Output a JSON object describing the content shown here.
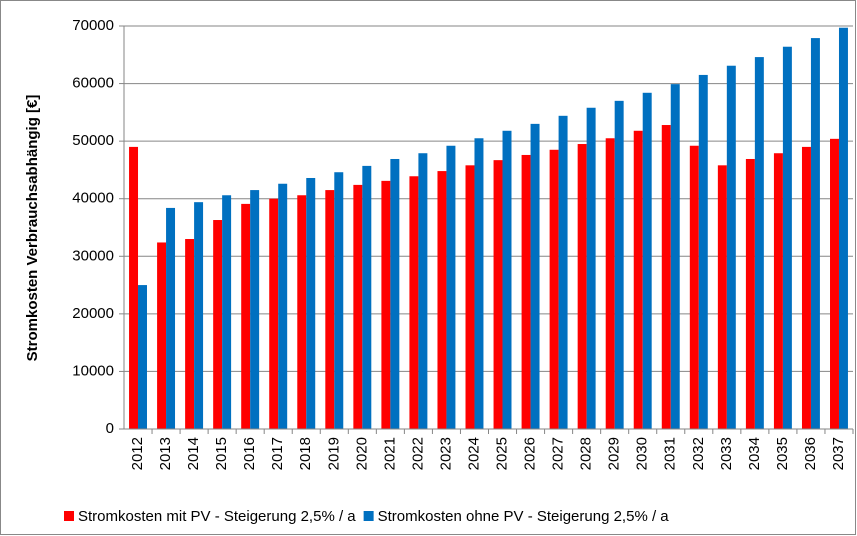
{
  "chart_data": {
    "type": "bar",
    "y_label": "Stromkosten Verbrauchsabhängig [€]",
    "categories": [
      "2012",
      "2013",
      "2014",
      "2015",
      "2016",
      "2017",
      "2018",
      "2019",
      "2020",
      "2021",
      "2022",
      "2023",
      "2024",
      "2025",
      "2026",
      "2027",
      "2028",
      "2029",
      "2030",
      "2031",
      "2032",
      "2033",
      "2034",
      "2035",
      "2036",
      "2037"
    ],
    "series": [
      {
        "name": "Stromkosten mit PV - Steigerung 2,5% / a",
        "color": "#ff0000",
        "values": [
          49000,
          32400,
          33000,
          36300,
          39100,
          40000,
          40600,
          41500,
          42400,
          43100,
          43900,
          44800,
          45800,
          46700,
          47600,
          48500,
          49500,
          50500,
          51800,
          52800,
          49200,
          45800,
          46900,
          47900,
          49000,
          50400
        ]
      },
      {
        "name": "Stromkosten ohne PV - Steigerung 2,5% / a",
        "color": "#0070c0",
        "values": [
          25000,
          38400,
          39400,
          40600,
          41500,
          42600,
          43600,
          44600,
          45700,
          46900,
          47900,
          49200,
          50500,
          51800,
          53000,
          54400,
          55800,
          57000,
          58400,
          59900,
          61500,
          63100,
          64600,
          66400,
          67900,
          69700
        ]
      }
    ],
    "ylim": [
      0,
      70000
    ],
    "yticks": [
      0,
      10000,
      20000,
      30000,
      40000,
      50000,
      60000,
      70000
    ],
    "grid": true,
    "legend": "bottom"
  }
}
